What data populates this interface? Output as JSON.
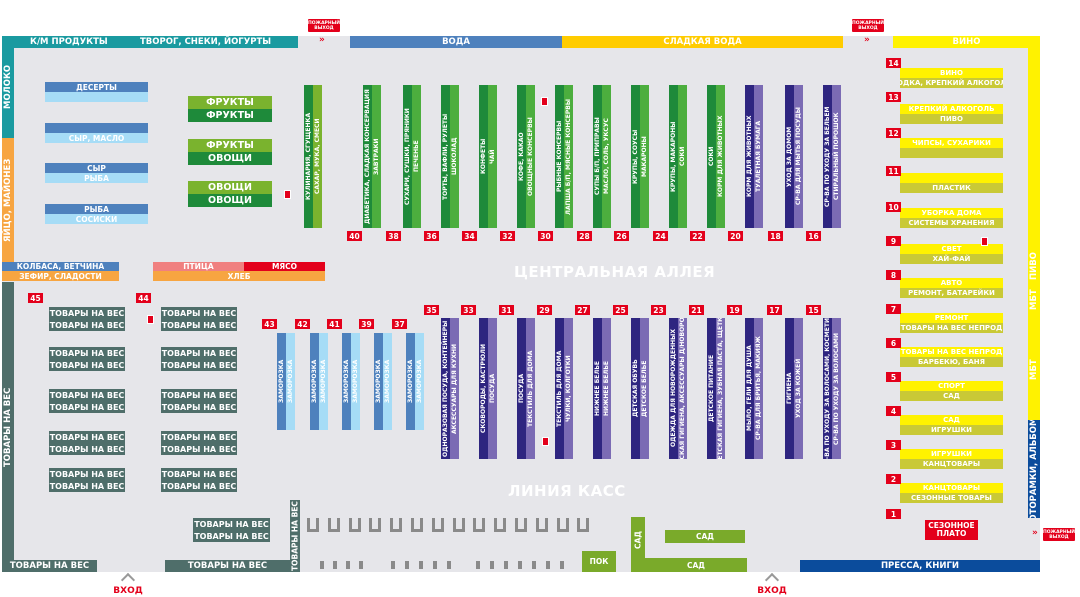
{
  "colors": {
    "teal": "#1a9aa0",
    "orange": "#f7a541",
    "slate": "#4f6e6a",
    "blue": "#4e81bd",
    "lightblue": "#a6dcf6",
    "yellow_dark": "#ffcc00",
    "yellow": "#fff200",
    "olive": "#c9c936",
    "green_dark": "#1e8a3a",
    "green_light": "#7ab32e",
    "purple_dark": "#2e2580",
    "purple_light": "#7b6bb4",
    "red": "#e3001b",
    "navy": "#0b4c9c"
  },
  "perimeter": {
    "km_products": "К/М ПРОДУКТЫ",
    "tvorog": "ТВОРОГ, СНЕКИ, ЙОГУРТЫ",
    "voda": "ВОДА",
    "sweet_water": "СЛАДКАЯ ВОДА",
    "vino": "ВИНО",
    "moloko": "МОЛОКО",
    "eggs": "ЯЙЦО, МАЙОНЕЗ",
    "weight_left": "ТОВАРЫ НА ВЕС",
    "pivo": "ПИВО",
    "mbt1": "МБТ",
    "mbt2": "МБТ",
    "photo": "ФОТОРАМКИ, АЛЬБОМЫ",
    "weight_bottom1": "ТОВАРЫ НА ВЕС",
    "weight_bottom2": "ТОВАРЫ НА ВЕС",
    "weight_bottom_v": "ТОВАРЫ НА ВЕС",
    "press": "ПРЕССА, КНИГИ"
  },
  "fire_exit": "ПОЖАРНЫЙ ВЫХОД",
  "entrance": "ВХОД",
  "central_alley": "ЦЕНТРАЛЬНАЯ АЛЛЕЯ",
  "checkout_line": "ЛИНИЯ КАСС",
  "dairy_islands": [
    [
      "ДЕСЕРТЫ",
      ""
    ],
    [
      "",
      "СЫР, МАСЛО"
    ],
    [
      "СЫР",
      "РЫБА"
    ],
    [
      "РЫБА",
      "СОСИСКИ"
    ]
  ],
  "produce_islands": [
    [
      "ФРУКТЫ",
      "ФРУКТЫ"
    ],
    [
      "ФРУКТЫ",
      "ОВОЩИ"
    ],
    [
      "ОВОЩИ",
      "ОВОЩИ"
    ]
  ],
  "deli": {
    "kolbasa": "КОЛБАСА, ВЕТЧИНА",
    "zefir": "ЗЕФИР, СЛАДОСТИ",
    "ptica": "ПТИЦА",
    "myaso": "МЯСО",
    "hleb": "ХЛЕБ"
  },
  "top_aisles": [
    [
      "КУЛИНАРИЯ, СГУЩЕНКА",
      "САХАР, МУКА, СМЕСИ"
    ],
    [
      "ДИАБЕТИКА, СЛАДКАЯ КОНСЕРВАЦИЯ",
      "ЗАВТРАКИ"
    ],
    [
      "СУХАРИ, СУШКИ, ПРЯНИКИ",
      "ПЕЧЕНЬЕ"
    ],
    [
      "ТОРТЫ, ВАФЛИ, РУЛЕТЫ",
      "ШОКОЛАД"
    ],
    [
      "КОНФЕТЫ",
      "ЧАЙ"
    ],
    [
      "КОФЕ, КАКАО",
      "ОВОЩНЫЕ КОНСЕРВЫ"
    ],
    [
      "РЫБНЫЕ КОНСЕРВЫ",
      "ЛАПША Б/П, МЯСНЫЕ КОНСЕРВЫ"
    ],
    [
      "СУПЫ Б/П, ПРИПРАВЫ",
      "МАСЛО, СОЛЬ, УКСУС"
    ],
    [
      "КРУПЫ, СОУСЫ",
      "МАКАРОНЫ"
    ],
    [
      "КРУПЫ, МАКАРОНЫ",
      "СОКИ"
    ],
    [
      "СОКИ",
      "КОРМ ДЛЯ ЖИВОТНЫХ"
    ],
    [
      "КОРМ ДЛЯ ЖИВОТНЫХ",
      "ТУАЛЕТНАЯ БУМАГА"
    ],
    [
      "УХОД ЗА ДОМОМ",
      "СР-ВА ДЛЯ МЫТЬЯ ПОСУДЫ"
    ],
    [
      "СР-ВА ПО УХОДУ ЗА БЕЛЬЕМ",
      "СТИРАЛЬНЫЙ ПОРОШОК"
    ]
  ],
  "top_numbers": [
    "40",
    "38",
    "36",
    "34",
    "32",
    "30",
    "28",
    "26",
    "24",
    "22",
    "20",
    "18",
    "16"
  ],
  "frozen_aisles": [
    [
      "ЗАМОРОЗКА",
      "ЗАМОРОЗКА"
    ],
    [
      "ЗАМОРОЗКА",
      "ЗАМОРОЗКА"
    ],
    [
      "ЗАМОРОЗКА",
      "ЗАМОРОЗКА"
    ],
    [
      "ЗАМОРОЗКА",
      "ЗАМОРОЗКА"
    ],
    [
      "ЗАМОРОЗКА",
      "ЗАМОРОЗКА"
    ]
  ],
  "frozen_numbers": [
    "43",
    "42",
    "41",
    "39",
    "37"
  ],
  "bottom_aisles": [
    [
      "ОДНОРАЗОВАЯ ПОСУДА, КОНТЕЙНЕРЫ",
      "АКСЕССУАРЫ ДЛЯ КУХНИ"
    ],
    [
      "СКОВОРОДЫ, КАСТРЮЛИ",
      "ПОСУДА"
    ],
    [
      "ПОСУДА",
      "ТЕКСТИЛЬ ДЛЯ ДОМА"
    ],
    [
      "ТЕКСТИЛЬ ДЛЯ ДОМА",
      "ЧУЛКИ, КОЛГОТКИ"
    ],
    [
      "НИЖНЕЕ БЕЛЬЕ",
      "НИЖНЕЕ БЕЛЬЕ"
    ],
    [
      "ДЕТСКАЯ ОБУВЬ",
      "ДЕТСКОЕ БЕЛЬЕ"
    ],
    [
      "ОДЕЖДА ДЛЯ НОВОРОЖДЕННЫХ",
      "ДЕТСКАЯ ГИГИЕНА, АКСЕССУАРЫ Д/НОВОРОЖД"
    ],
    [
      "ДЕТСКОЕ ПИТАНИЕ",
      "ДЕТСКАЯ ГИГИЕНА, ЗУБНАЯ ПАСТА, ЩЕТКИ"
    ],
    [
      "МЫЛО, ГЕЛИ ДЛЯ ДУША",
      "СР-ВА ДЛЯ БРИТЬЯ, МАКИЯЖ"
    ],
    [
      "ГИГИЕНА",
      "УХОД ЗА КОЖЕЙ"
    ],
    [
      "СР-ВА ПО УХОДУ ЗА ВОЛОСАМИ, КОСМЕТИКА",
      "СР-ВА ПО УХОДУ ЗА ВОЛОСАМИ"
    ]
  ],
  "bottom_numbers": [
    "35",
    "33",
    "31",
    "29",
    "27",
    "25",
    "23",
    "21",
    "19",
    "17",
    "15"
  ],
  "weight_islands": [
    [
      "ТОВАРЫ НА ВЕС",
      "ТОВАРЫ НА ВЕС"
    ],
    [
      "ТОВАРЫ НА ВЕС",
      "ТОВАРЫ НА ВЕС"
    ],
    [
      "ТОВАРЫ НА ВЕС",
      "ТОВАРЫ НА ВЕС"
    ],
    [
      "ТОВАРЫ НА ВЕС",
      "ТОВАРЫ НА ВЕС"
    ],
    [
      "ТОВАРЫ НА ВЕС",
      "ТОВАРЫ НА ВЕС"
    ],
    [
      "ТОВАРЫ НА ВЕС",
      "ТОВАРЫ НА ВЕС"
    ],
    [
      "ТОВАРЫ НА ВЕС",
      "ТОВАРЫ НА ВЕС"
    ],
    [
      "ТОВАРЫ НА ВЕС",
      "ТОВАРЫ НА ВЕС"
    ],
    [
      "ТОВАРЫ НА ВЕС",
      "ТОВАРЫ НА ВЕС"
    ],
    [
      "ТОВАРЫ НА ВЕС",
      "ТОВАРЫ НА ВЕС"
    ],
    [
      "ТОВАРЫ НА ВЕС",
      "ТОВАРЫ НА ВЕС"
    ]
  ],
  "weight_numbers": [
    "45",
    "44"
  ],
  "right_islands": [
    [
      "ВИНО",
      "ВОДКА, КРЕПКИЙ АЛКОГОЛЬ"
    ],
    [
      "КРЕПКИЙ АЛКОГОЛЬ",
      "ПИВО"
    ],
    [
      "ЧИПСЫ, СУХАРИКИ",
      ""
    ],
    [
      "",
      "ПЛАСТИК"
    ],
    [
      "УБОРКА ДОМА",
      "СИСТЕМЫ ХРАНЕНИЯ"
    ],
    [
      "СВЕТ",
      "ХАЙ-ФАЙ"
    ],
    [
      "АВТО",
      "РЕМОНТ, БАТАРЕЙКИ"
    ],
    [
      "РЕМОНТ",
      "ТОВАРЫ НА ВЕС НЕПРОД"
    ],
    [
      "ТОВАРЫ НА ВЕС НЕПРОД",
      "БАРБЕКЮ, БАНЯ"
    ],
    [
      "СПОРТ",
      "САД"
    ],
    [
      "САД",
      "ИГРУШКИ"
    ],
    [
      "ИГРУШКИ",
      "КАНЦТОВАРЫ"
    ],
    [
      "КАНЦТОВАРЫ",
      "СЕЗОННЫЕ ТОВАРЫ"
    ]
  ],
  "right_numbers": [
    "14",
    "13",
    "12",
    "11",
    "10",
    "9",
    "8",
    "7",
    "6",
    "5",
    "4",
    "3",
    "2",
    "1"
  ],
  "seasonal": "СЕЗОННОЕ ПЛАТО",
  "garden": {
    "pok": "ПОК",
    "sad_v": "САД",
    "sad_top": "САД",
    "sad_bottom": "САД"
  }
}
